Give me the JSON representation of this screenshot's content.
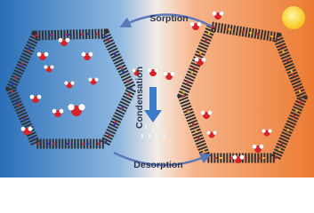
{
  "labels": {
    "sorption": "Sorption",
    "condensation": "Condensation",
    "desorption": "Desorption"
  }
}
